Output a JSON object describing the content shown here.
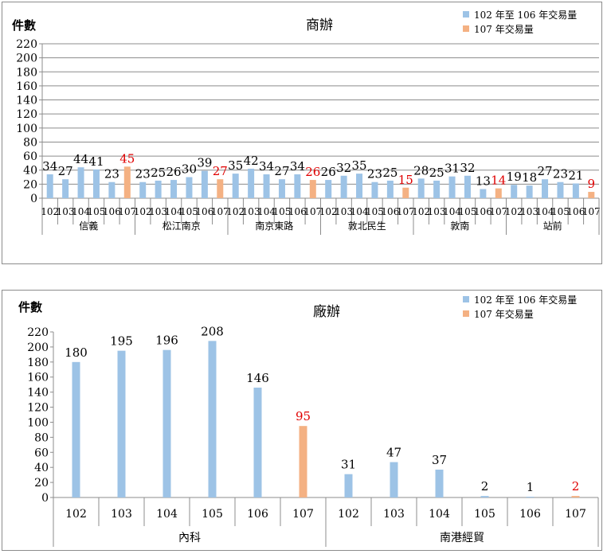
{
  "chart_data": [
    {
      "type": "bar",
      "title": "商辦",
      "ylabel": "件數",
      "xlabel": "",
      "ylim": [
        0,
        220
      ],
      "yticks": [
        0,
        20,
        40,
        60,
        80,
        100,
        120,
        140,
        160,
        180,
        200,
        220
      ],
      "grid": true,
      "legend_position": "top-right",
      "legend": [
        {
          "name": "102 年至 106 年交易量",
          "color": "#9dc3e6"
        },
        {
          "name": "107 年交易量",
          "color": "#f4b183"
        }
      ],
      "highlight_label_color": "#e00000",
      "groups": [
        {
          "name": "信義",
          "categories": [
            "102",
            "103",
            "104",
            "105",
            "106",
            "107"
          ],
          "values": [
            34,
            27,
            44,
            41,
            23,
            45
          ]
        },
        {
          "name": "松江南京",
          "categories": [
            "102",
            "103",
            "104",
            "105",
            "106",
            "107"
          ],
          "values": [
            23,
            25,
            26,
            30,
            39,
            27
          ]
        },
        {
          "name": "南京東路",
          "categories": [
            "102",
            "103",
            "104",
            "105",
            "106",
            "107"
          ],
          "values": [
            35,
            42,
            34,
            27,
            34,
            26
          ]
        },
        {
          "name": "敦北民生",
          "categories": [
            "102",
            "103",
            "104",
            "105",
            "106",
            "107"
          ],
          "values": [
            26,
            32,
            35,
            23,
            25,
            15
          ]
        },
        {
          "name": "敦南",
          "categories": [
            "102",
            "103",
            "104",
            "105",
            "106",
            "107"
          ],
          "values": [
            28,
            25,
            31,
            32,
            13,
            14
          ]
        },
        {
          "name": "站前",
          "categories": [
            "102",
            "103",
            "104",
            "105",
            "106",
            "107"
          ],
          "values": [
            19,
            18,
            27,
            23,
            21,
            9
          ]
        }
      ]
    },
    {
      "type": "bar",
      "title": "廠辦",
      "ylabel": "件數",
      "xlabel": "",
      "ylim": [
        0,
        220
      ],
      "yticks": [
        0,
        20,
        40,
        60,
        80,
        100,
        120,
        140,
        160,
        180,
        200,
        220
      ],
      "grid": false,
      "legend_position": "top-right",
      "legend": [
        {
          "name": "102 年至 106 年交易量",
          "color": "#9dc3e6"
        },
        {
          "name": "107 年交易量",
          "color": "#f4b183"
        }
      ],
      "highlight_label_color": "#e00000",
      "groups": [
        {
          "name": "內科",
          "categories": [
            "102",
            "103",
            "104",
            "105",
            "106",
            "107"
          ],
          "values": [
            180,
            195,
            196,
            208,
            146,
            95
          ]
        },
        {
          "name": "南港經貿",
          "categories": [
            "102",
            "103",
            "104",
            "105",
            "106",
            "107"
          ],
          "values": [
            31,
            47,
            37,
            2,
            1,
            2
          ]
        }
      ]
    }
  ]
}
